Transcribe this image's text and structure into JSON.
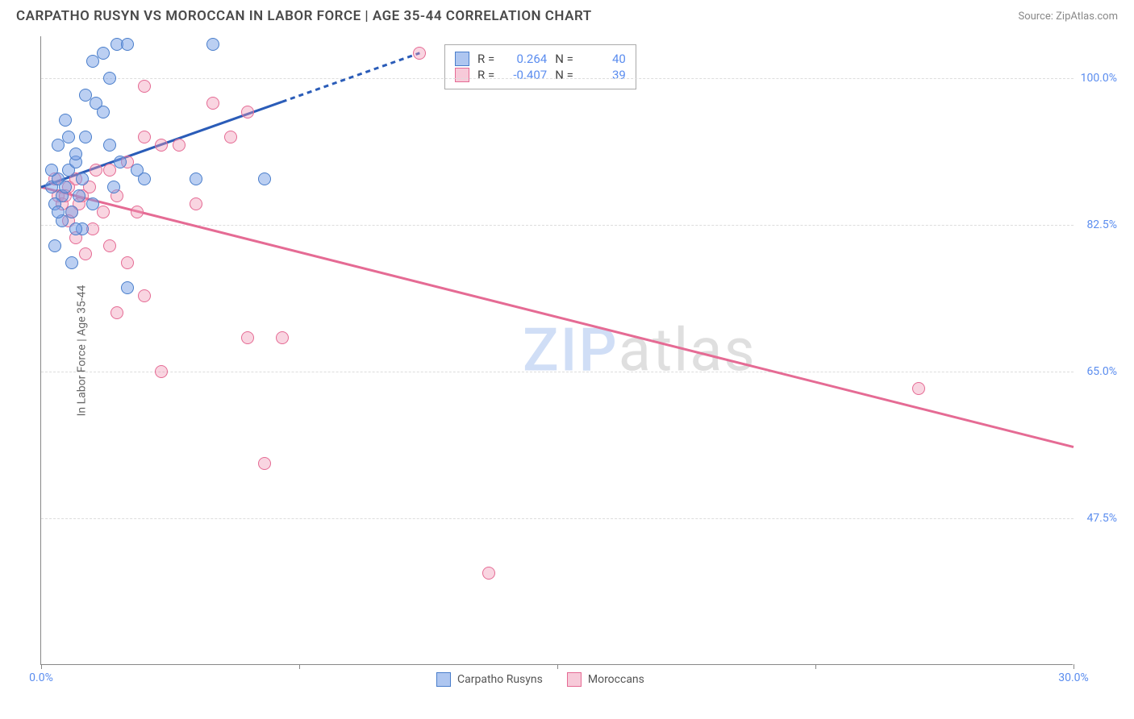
{
  "header": {
    "title": "CARPATHO RUSYN VS MOROCCAN IN LABOR FORCE | AGE 35-44 CORRELATION CHART",
    "source": "Source: ZipAtlas.com"
  },
  "chart": {
    "type": "scatter",
    "y_axis_label": "In Labor Force | Age 35-44",
    "xlim": [
      0,
      30
    ],
    "ylim": [
      30,
      105
    ],
    "x_ticks": [
      0,
      7.5,
      15,
      22.5,
      30
    ],
    "x_tick_labels": [
      "0.0%",
      "",
      "",
      "",
      "30.0%"
    ],
    "y_ticks": [
      47.5,
      65.0,
      82.5,
      100.0
    ],
    "y_tick_labels": [
      "47.5%",
      "65.0%",
      "82.5%",
      "100.0%"
    ],
    "background_color": "#ffffff",
    "grid_color": "#dddddd",
    "series": {
      "blue": {
        "label": "Carpatho Rusyns",
        "color_fill": "rgba(120,160,230,0.5)",
        "color_stroke": "#4a7ecb",
        "points": [
          [
            0.3,
            87
          ],
          [
            0.5,
            88
          ],
          [
            0.8,
            89
          ],
          [
            1.0,
            90
          ],
          [
            0.6,
            86
          ],
          [
            1.2,
            88
          ],
          [
            0.4,
            85
          ],
          [
            1.5,
            102
          ],
          [
            1.8,
            103
          ],
          [
            2.2,
            104
          ],
          [
            2.5,
            104
          ],
          [
            2.0,
            100
          ],
          [
            1.3,
            98
          ],
          [
            1.6,
            97
          ],
          [
            0.5,
            92
          ],
          [
            0.8,
            93
          ],
          [
            1.0,
            91
          ],
          [
            0.3,
            89
          ],
          [
            0.7,
            87
          ],
          [
            1.1,
            86
          ],
          [
            1.5,
            85
          ],
          [
            0.4,
            80
          ],
          [
            0.9,
            78
          ],
          [
            1.2,
            82
          ],
          [
            0.6,
            83
          ],
          [
            2.0,
            92
          ],
          [
            2.3,
            90
          ],
          [
            2.8,
            89
          ],
          [
            3.0,
            88
          ],
          [
            5.0,
            104
          ],
          [
            4.5,
            88
          ],
          [
            2.5,
            75
          ],
          [
            0.5,
            84
          ],
          [
            1.0,
            82
          ],
          [
            1.3,
            93
          ],
          [
            0.7,
            95
          ],
          [
            1.8,
            96
          ],
          [
            2.1,
            87
          ],
          [
            6.5,
            88
          ],
          [
            0.9,
            84
          ]
        ],
        "trend": {
          "x1": 0,
          "y1": 87,
          "x2": 11,
          "y2": 103,
          "dash_after_x": 7
        }
      },
      "pink": {
        "label": "Moroccans",
        "color_fill": "rgba(240,150,180,0.4)",
        "color_stroke": "#e56b94",
        "points": [
          [
            0.5,
            86
          ],
          [
            0.8,
            87
          ],
          [
            1.0,
            88
          ],
          [
            1.2,
            86
          ],
          [
            0.6,
            85
          ],
          [
            0.9,
            84
          ],
          [
            2.0,
            89
          ],
          [
            2.5,
            90
          ],
          [
            3.0,
            99
          ],
          [
            3.5,
            92
          ],
          [
            4.0,
            92
          ],
          [
            5.0,
            97
          ],
          [
            6.0,
            96
          ],
          [
            1.5,
            82
          ],
          [
            2.0,
            80
          ],
          [
            2.5,
            78
          ],
          [
            3.0,
            93
          ],
          [
            1.8,
            84
          ],
          [
            2.2,
            72
          ],
          [
            3.0,
            74
          ],
          [
            3.5,
            65
          ],
          [
            5.5,
            93
          ],
          [
            6.0,
            69
          ],
          [
            7.0,
            69
          ],
          [
            6.5,
            54
          ],
          [
            11.0,
            103
          ],
          [
            13.0,
            41
          ],
          [
            25.5,
            63
          ],
          [
            0.4,
            88
          ],
          [
            0.7,
            86
          ],
          [
            1.1,
            85
          ],
          [
            1.4,
            87
          ],
          [
            0.8,
            83
          ],
          [
            1.0,
            81
          ],
          [
            1.6,
            89
          ],
          [
            2.2,
            86
          ],
          [
            2.8,
            84
          ],
          [
            4.5,
            85
          ],
          [
            1.3,
            79
          ]
        ],
        "trend": {
          "x1": 0,
          "y1": 87,
          "x2": 30,
          "y2": 56
        }
      }
    },
    "stats": [
      {
        "swatch": "blue",
        "r": "0.264",
        "n": "40"
      },
      {
        "swatch": "pink",
        "r": "-0.407",
        "n": "39"
      }
    ],
    "legend": [
      {
        "swatch": "blue",
        "label": "Carpatho Rusyns"
      },
      {
        "swatch": "pink",
        "label": "Moroccans"
      }
    ],
    "labels": {
      "r": "R =",
      "n": "N ="
    }
  },
  "watermark": {
    "part1": "ZIP",
    "part2": "atlas"
  }
}
